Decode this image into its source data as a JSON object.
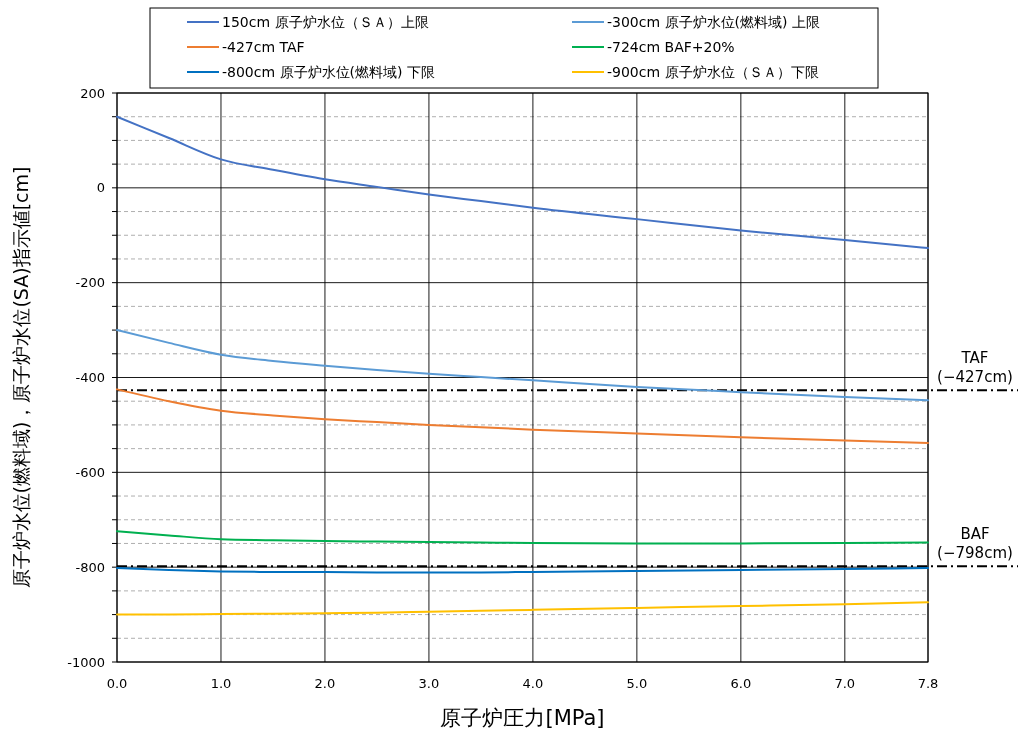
{
  "chart_data": {
    "type": "line",
    "xlabel": "原子炉圧力[MPa]",
    "ylabel": "原子炉水位(燃料域)，原子炉水位(SA)指示値[cm]",
    "xlim": [
      0,
      7.8
    ],
    "xticks": [
      {
        "value": 0,
        "label": "0.0"
      },
      {
        "value": 1,
        "label": "1.0"
      },
      {
        "value": 2,
        "label": "2.0"
      },
      {
        "value": 3,
        "label": "3.0"
      },
      {
        "value": 4,
        "label": "4.0"
      },
      {
        "value": 5,
        "label": "5.0"
      },
      {
        "value": 6,
        "label": "6.0"
      },
      {
        "value": 7,
        "label": "7.0"
      },
      {
        "value": 7.8,
        "label": "7.8"
      }
    ],
    "ylim": [
      -1000,
      200
    ],
    "yticks": [
      200,
      {
        "value": 150,
        "label": null
      },
      {
        "value": 100,
        "label": null
      },
      {
        "value": 50,
        "label": null
      },
      0,
      {
        "value": -50,
        "label": null
      },
      {
        "value": -100,
        "label": null
      },
      {
        "value": -150,
        "label": null
      },
      -200,
      {
        "value": -250,
        "label": null
      },
      {
        "value": -300,
        "label": null
      },
      {
        "value": -350,
        "label": null
      },
      -400,
      {
        "value": -450,
        "label": null
      },
      {
        "value": -500,
        "label": null
      },
      {
        "value": -550,
        "label": null
      },
      -600,
      {
        "value": -650,
        "label": null
      },
      {
        "value": -700,
        "label": null
      },
      {
        "value": -750,
        "label": null
      },
      -800,
      {
        "value": -850,
        "label": null
      },
      {
        "value": -900,
        "label": null
      },
      {
        "value": -950,
        "label": null
      },
      -1000
    ],
    "grid": true,
    "legend": "top",
    "marker": "none",
    "line_style": "solid",
    "x": [
      0,
      0.5,
      1,
      1.5,
      2,
      2.5,
      3,
      3.5,
      4,
      5,
      6,
      7,
      7.8
    ],
    "series": [
      {
        "name": "150cm 原子炉水位（ＳＡ）上限",
        "color": "#4472c4",
        "values": [
          150,
          105,
          60,
          38,
          18,
          2,
          -14,
          -28,
          -42,
          -66,
          -90,
          -110,
          -127
        ]
      },
      {
        "name": "-300cm 原子炉水位(燃料域) 上限",
        "color": "#5b9bd5",
        "values": [
          -300,
          -327,
          -352,
          -365,
          -375,
          -384,
          -392,
          -399,
          -406,
          -420,
          -431,
          -441,
          -448
        ]
      },
      {
        "name": "-427cm TAF",
        "color": "#ed7d31",
        "values": [
          -425,
          -450,
          -470,
          -480,
          -488,
          -494,
          -500,
          -505,
          -510,
          -518,
          -526,
          -533,
          -538
        ]
      },
      {
        "name": "-724cm BAF+20%",
        "color": "#00b050",
        "values": [
          -724,
          -733,
          -741,
          -743,
          -745,
          -746,
          -747,
          -748,
          -749,
          -750,
          -750,
          -749,
          -748
        ]
      },
      {
        "name": "-800cm 原子炉水位(燃料域) 下限",
        "color": "#0070c0",
        "values": [
          -802,
          -806,
          -809,
          -810,
          -810,
          -811,
          -811,
          -811,
          -810,
          -808,
          -806,
          -804,
          -802
        ]
      },
      {
        "name": "-900cm 原子炉水位（ＳＡ）下限",
        "color": "#ffc000",
        "values": [
          -900,
          -900,
          -899,
          -898,
          -897,
          -896,
          -894,
          -892,
          -890,
          -886,
          -882,
          -878,
          -874
        ]
      }
    ],
    "ref_lines": [
      {
        "axis": "y",
        "value": -427,
        "label": "TAF\n(−427cm)",
        "color": "#000000"
      },
      {
        "axis": "y",
        "value": -798,
        "label": "BAF\n(−798cm)",
        "color": "#000000"
      }
    ]
  }
}
